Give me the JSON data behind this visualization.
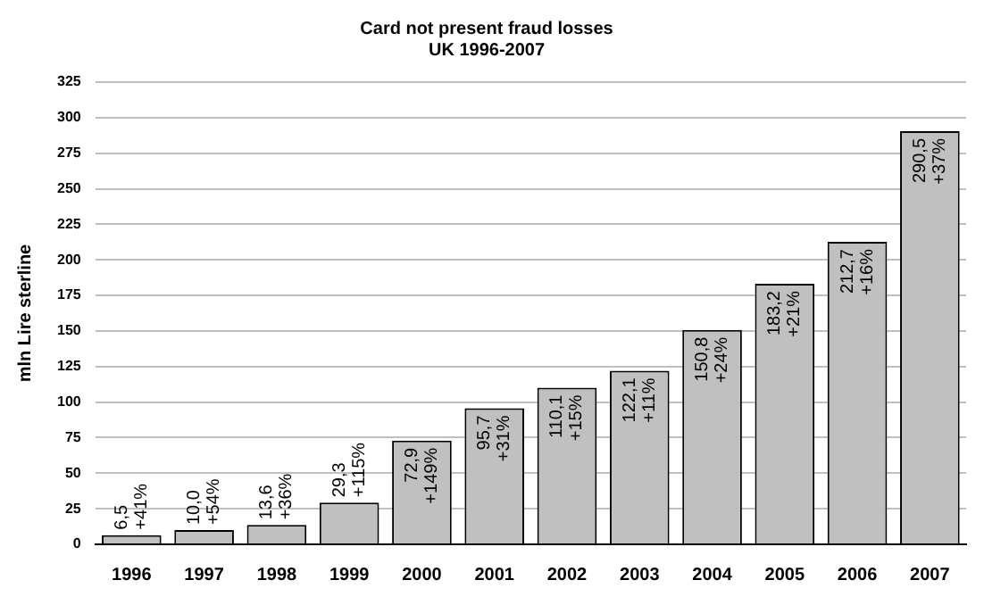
{
  "chart_data": {
    "type": "bar",
    "title": "Card not present fraud losses",
    "subtitle": "UK 1996-2007",
    "ylabel": "mln Lire sterline",
    "categories": [
      "1996",
      "1997",
      "1998",
      "1999",
      "2000",
      "2001",
      "2002",
      "2003",
      "2004",
      "2005",
      "2006",
      "2007"
    ],
    "values": [
      6.5,
      10.0,
      13.6,
      29.3,
      72.9,
      95.7,
      110.1,
      122.1,
      150.8,
      183.2,
      212.7,
      290.5
    ],
    "value_labels": [
      "6,5\n+41%",
      "10,0\n+54%",
      "13,6\n+36%",
      "29,3\n+115%",
      "72,9\n+149%",
      "95,7\n+31%",
      "110,1\n+15%",
      "122,1\n+11%",
      "150,8\n+24%",
      "183,2\n+21%",
      "212,7\n+16%",
      "290,5\n+37%"
    ],
    "color": "#c0c0c0",
    "ylim": [
      0,
      325
    ],
    "yticks": [
      0,
      25,
      50,
      75,
      100,
      125,
      150,
      175,
      200,
      225,
      250,
      275,
      300,
      325
    ],
    "grid": "y",
    "legend": false
  }
}
